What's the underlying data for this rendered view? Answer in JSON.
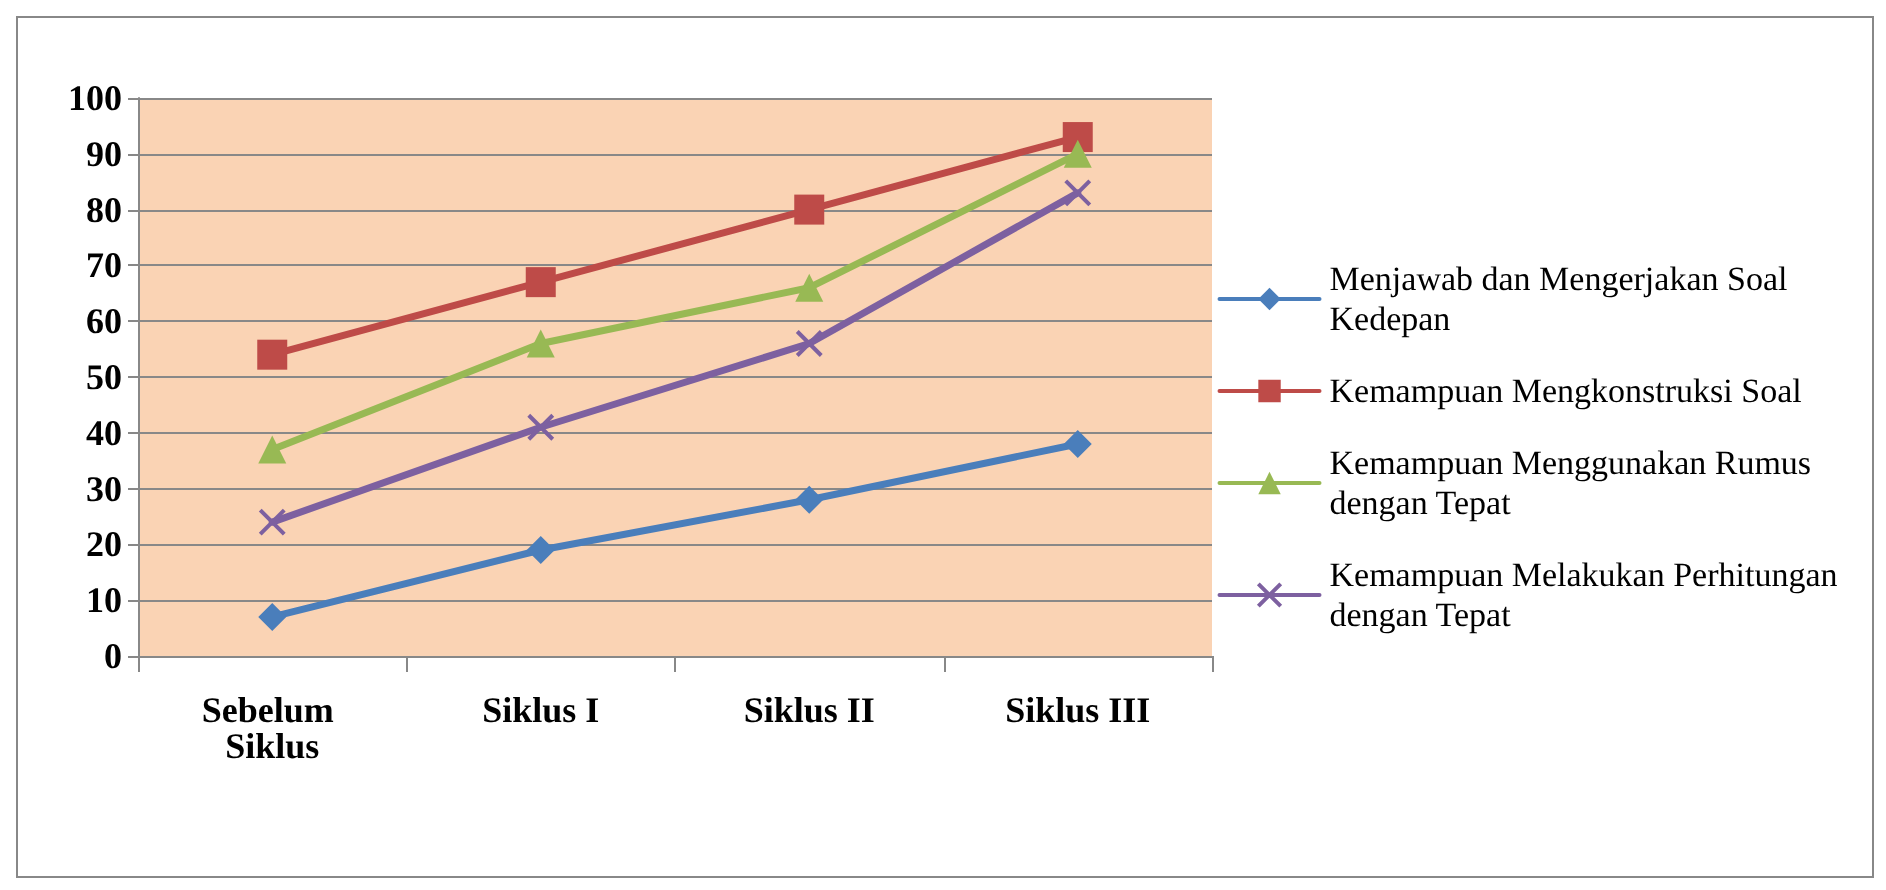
{
  "chart_data": {
    "type": "line",
    "categories": [
      "Sebelum Siklus",
      "Siklus I",
      "Siklus II",
      "Siklus III"
    ],
    "series": [
      {
        "name": "Menjawab dan Mengerjakan Soal Kedepan",
        "color": "#4a7ebb",
        "marker": "diamond",
        "values": [
          7,
          19,
          28,
          38
        ]
      },
      {
        "name": "Kemampuan Mengkonstruksi Soal",
        "color": "#be4b48",
        "marker": "square",
        "values": [
          54,
          67,
          80,
          93
        ]
      },
      {
        "name": "Kemampuan Menggunakan Rumus dengan Tepat",
        "color": "#98b954",
        "marker": "triangle",
        "values": [
          37,
          56,
          66,
          90
        ]
      },
      {
        "name": "Kemampuan Melakukan Perhitungan dengan Tepat",
        "color": "#7d60a0",
        "marker": "cross",
        "values": [
          24,
          41,
          56,
          83
        ]
      }
    ],
    "ylim": [
      0,
      100
    ],
    "yticks": [
      0,
      10,
      20,
      30,
      40,
      50,
      60,
      70,
      80,
      90,
      100
    ],
    "grid": "y",
    "legend": "right",
    "line_style": "solid"
  }
}
